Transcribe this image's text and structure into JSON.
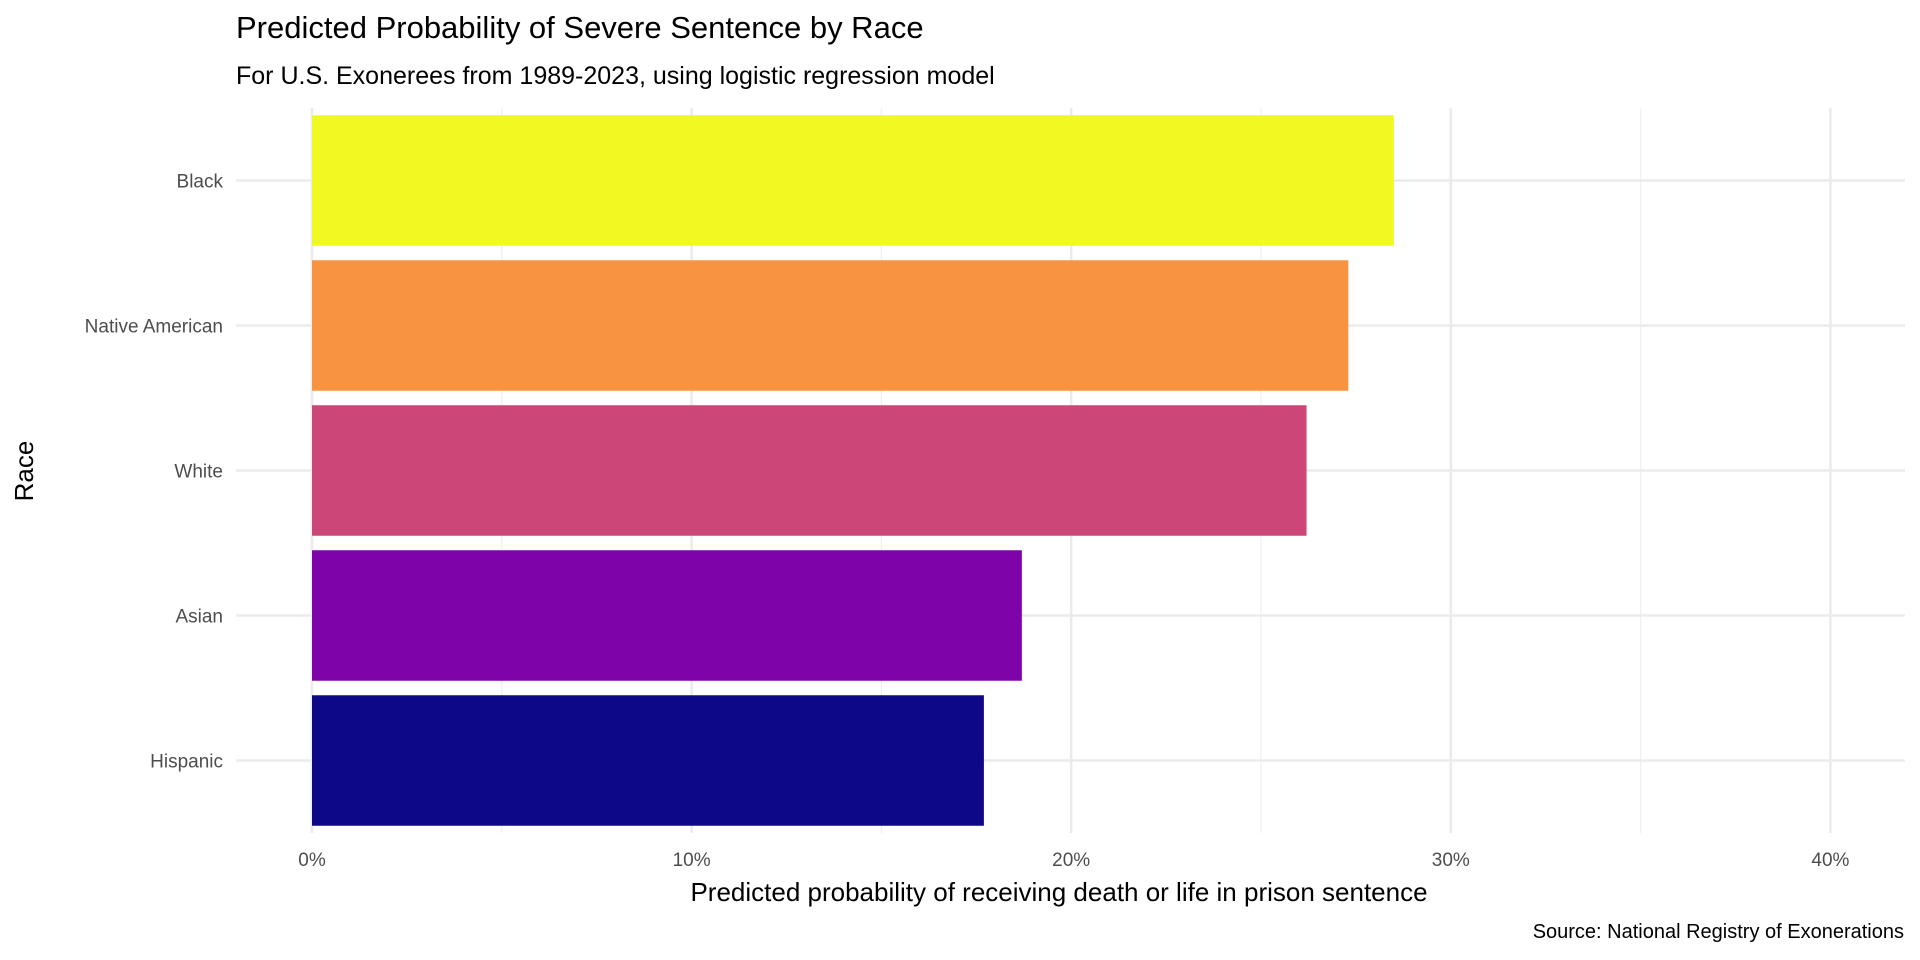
{
  "chart_data": {
    "type": "bar",
    "orientation": "horizontal",
    "title": "Predicted Probability of Severe Sentence by Race",
    "subtitle": "For U.S. Exonerees from 1989-2023, using logistic regression model",
    "xlabel": "Predicted probability of receiving death or life in prison sentence",
    "ylabel": "Race",
    "caption": "Source: National Registry of Exonerations",
    "categories": [
      "Black",
      "Native American",
      "White",
      "Asian",
      "Hispanic"
    ],
    "values": [
      28.5,
      27.3,
      26.2,
      18.7,
      17.7
    ],
    "unit": "%",
    "colors": [
      "#F0F921",
      "#F89441",
      "#CC4778",
      "#7E03A8",
      "#0D0887"
    ],
    "xlim": [
      0,
      42
    ],
    "xticks": [
      0,
      10,
      20,
      30,
      40
    ],
    "xtick_labels": [
      "0%",
      "10%",
      "20%",
      "30%",
      "40%"
    ],
    "grid": true,
    "legend": "none"
  }
}
